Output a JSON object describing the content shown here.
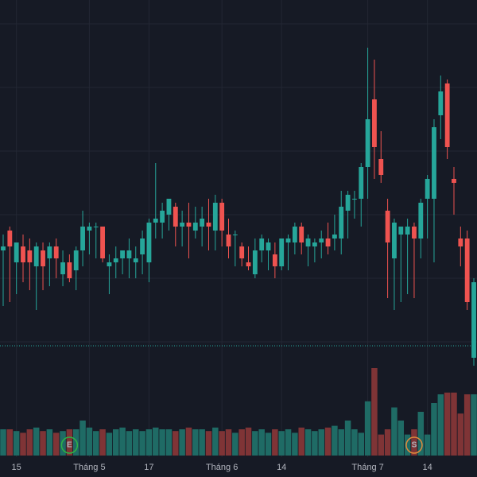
{
  "chart_data": {
    "type": "candlestick",
    "categories": [
      null,
      null,
      "15",
      null,
      null,
      null,
      null,
      null,
      null,
      null,
      null,
      null,
      null,
      "Tháng 5",
      null,
      null,
      null,
      null,
      null,
      null,
      null,
      null,
      "17",
      null,
      null,
      null,
      null,
      null,
      null,
      null,
      null,
      null,
      null,
      "Tháng 6",
      null,
      null,
      null,
      null,
      null,
      null,
      null,
      null,
      "14",
      null,
      null,
      null,
      null,
      null,
      null,
      null,
      null,
      null,
      null,
      null,
      null,
      "Tháng 7",
      null,
      null,
      null,
      null,
      null,
      null,
      null,
      null,
      "14",
      null,
      null,
      null,
      null,
      null,
      null,
      null
    ],
    "candles": [
      [
        37,
        41,
        23,
        38
      ],
      [
        42,
        43,
        24,
        38
      ],
      [
        34,
        39,
        26,
        39
      ],
      [
        38,
        41,
        29,
        34
      ],
      [
        37,
        40,
        27,
        34
      ],
      [
        33,
        39,
        22,
        38
      ],
      [
        37,
        39,
        27,
        33
      ],
      [
        35,
        39,
        28,
        38
      ],
      [
        38,
        40,
        30,
        35
      ],
      [
        31,
        37,
        28,
        34
      ],
      [
        34,
        36,
        29,
        30
      ],
      [
        32,
        38,
        27,
        37
      ],
      [
        37,
        47,
        33,
        43
      ],
      [
        42,
        44,
        36,
        43
      ],
      [
        43,
        44,
        35,
        43
      ],
      [
        43,
        43,
        34,
        35
      ],
      [
        33,
        36,
        26,
        34
      ],
      [
        34,
        38,
        30,
        35
      ],
      [
        35,
        37,
        31,
        37
      ],
      [
        35,
        40,
        30,
        37
      ],
      [
        34,
        38,
        30,
        35
      ],
      [
        36,
        42,
        31,
        40
      ],
      [
        34,
        45,
        29,
        44
      ],
      [
        44,
        59,
        40,
        45
      ],
      [
        44,
        49,
        40,
        47
      ],
      [
        46,
        50,
        42,
        50
      ],
      [
        48,
        49,
        38,
        43
      ],
      [
        43,
        47,
        38,
        44
      ],
      [
        44,
        49,
        35,
        43
      ],
      [
        42,
        48,
        40,
        44
      ],
      [
        43,
        48,
        38,
        45
      ],
      [
        44,
        50,
        37,
        43
      ],
      [
        42,
        51,
        37,
        49
      ],
      [
        49,
        50,
        38,
        42
      ],
      [
        41,
        45,
        35,
        38
      ],
      [
        41,
        42,
        33,
        41
      ],
      [
        38,
        39,
        33,
        35
      ],
      [
        34,
        38,
        32,
        33
      ],
      [
        31,
        40,
        30,
        37
      ],
      [
        37,
        41,
        34,
        40
      ],
      [
        37,
        40,
        32,
        39
      ],
      [
        36,
        39,
        30,
        33
      ],
      [
        33,
        40,
        32,
        40
      ],
      [
        39,
        41,
        32,
        40
      ],
      [
        39,
        44,
        36,
        43
      ],
      [
        43,
        44,
        36,
        39
      ],
      [
        38,
        41,
        33,
        40
      ],
      [
        38,
        40,
        34,
        39
      ],
      [
        39,
        42,
        35,
        40
      ],
      [
        40,
        44,
        36,
        38
      ],
      [
        40,
        46,
        37,
        41
      ],
      [
        40,
        52,
        36,
        48
      ],
      [
        47,
        52,
        40,
        51
      ],
      [
        50,
        52,
        45,
        50
      ],
      [
        50,
        59,
        43,
        58
      ],
      [
        58,
        88,
        50,
        70
      ],
      [
        75,
        85,
        55,
        63
      ],
      [
        60,
        67,
        54,
        56
      ],
      [
        47,
        50,
        25,
        39
      ],
      [
        35,
        45,
        22,
        44
      ],
      [
        41,
        43,
        24,
        43
      ],
      [
        41,
        45,
        26,
        43
      ],
      [
        43,
        44,
        25,
        40
      ],
      [
        40,
        50,
        35,
        49
      ],
      [
        50,
        56,
        40,
        55
      ],
      [
        50,
        70,
        34,
        68
      ],
      [
        71,
        81,
        65,
        77
      ],
      [
        79,
        80,
        60,
        63
      ],
      [
        55,
        58,
        46,
        54
      ],
      [
        40,
        43,
        33,
        38
      ],
      [
        40,
        42,
        22,
        24
      ],
      [
        10,
        30,
        8,
        29
      ]
    ],
    "volume": [
      30,
      30,
      28,
      26,
      30,
      32,
      28,
      30,
      26,
      28,
      30,
      30,
      40,
      32,
      28,
      30,
      26,
      30,
      32,
      28,
      30,
      28,
      30,
      32,
      30,
      30,
      28,
      30,
      32,
      30,
      30,
      28,
      32,
      28,
      30,
      26,
      30,
      32,
      28,
      30,
      26,
      30,
      28,
      30,
      26,
      32,
      30,
      28,
      30,
      32,
      34,
      30,
      40,
      30,
      26,
      62,
      100,
      24,
      30,
      55,
      40,
      24,
      30,
      50,
      24,
      60,
      70,
      72,
      72,
      48,
      70,
      70
    ],
    "ylim": [
      0,
      100
    ],
    "yticks": [
      94,
      78,
      62,
      46,
      30,
      14
    ],
    "volume_lim": [
      0,
      100
    ],
    "price_line": 13,
    "grid": true,
    "up_color": "#26a69a",
    "down_color": "#ef5350",
    "volume_up_color": "#1f6b65",
    "volume_down_color": "#7f3436",
    "events": [
      {
        "index": 10,
        "label": "E",
        "color": "#2fb344"
      },
      {
        "index": 62,
        "label": "S",
        "color": "#e08a3c"
      }
    ]
  }
}
